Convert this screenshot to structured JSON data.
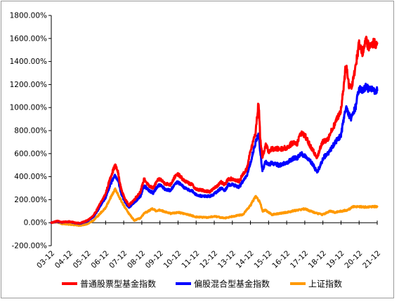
{
  "chart_data": {
    "type": "line",
    "title": "",
    "xlabel": "",
    "ylabel": "",
    "y_tick_labels": [
      "1800.00%",
      "1600.00%",
      "1400.00%",
      "1200.00%",
      "1000.00%",
      "800.00%",
      "600.00%",
      "400.00%",
      "200.00%",
      "0.00%",
      "-200.00%"
    ],
    "y_ticks": [
      1800,
      1600,
      1400,
      1200,
      1000,
      800,
      600,
      400,
      200,
      0,
      -200
    ],
    "ylim": [
      -200,
      1800
    ],
    "x_tick_labels": [
      "03-12",
      "04-12",
      "05-12",
      "06-12",
      "07-12",
      "08-12",
      "09-12",
      "10-12",
      "11-12",
      "12-12",
      "13-12",
      "14-12",
      "15-12",
      "16-12",
      "17-12",
      "18-12",
      "19-12",
      "20-12",
      "21-12"
    ],
    "xlim": [
      2003.92,
      2021.92
    ],
    "grid": false,
    "legend_position": "bottom",
    "series": [
      {
        "name": "普通股票型基金指数",
        "color": "#ff0000",
        "x": [
          2003.92,
          2004.25,
          2004.5,
          2004.92,
          2005.25,
          2005.5,
          2005.92,
          2006.25,
          2006.5,
          2006.92,
          2007.2,
          2007.45,
          2007.6,
          2007.75,
          2007.92,
          2008.2,
          2008.5,
          2008.85,
          2009.05,
          2009.3,
          2009.55,
          2009.75,
          2009.92,
          2010.2,
          2010.5,
          2010.75,
          2010.92,
          2011.3,
          2011.7,
          2011.92,
          2012.3,
          2012.7,
          2012.92,
          2013.3,
          2013.5,
          2013.7,
          2013.92,
          2014.3,
          2014.5,
          2014.7,
          2014.92,
          2015.2,
          2015.37,
          2015.45,
          2015.58,
          2015.75,
          2015.92,
          2016.1,
          2016.5,
          2016.92,
          2017.3,
          2017.5,
          2017.7,
          2017.92,
          2018.3,
          2018.6,
          2018.85,
          2018.92,
          2019.2,
          2019.4,
          2019.7,
          2019.92,
          2020.2,
          2020.35,
          2020.5,
          2020.75,
          2020.92,
          2021.1,
          2021.3,
          2021.5,
          2021.7,
          2021.92
        ],
        "y": [
          0,
          15,
          5,
          10,
          0,
          -5,
          20,
          60,
          130,
          250,
          400,
          500,
          440,
          310,
          230,
          150,
          200,
          270,
          380,
          320,
          300,
          360,
          380,
          340,
          330,
          400,
          420,
          360,
          330,
          290,
          280,
          270,
          300,
          350,
          330,
          380,
          380,
          360,
          420,
          460,
          620,
          780,
          1050,
          760,
          560,
          680,
          620,
          640,
          640,
          650,
          700,
          690,
          780,
          760,
          640,
          570,
          680,
          700,
          730,
          800,
          900,
          980,
          1380,
          1200,
          1180,
          1380,
          1560,
          1480,
          1580,
          1520,
          1560,
          1560
        ]
      },
      {
        "name": "偏股混合型基金指数",
        "color": "#0000ff",
        "x": [
          2003.92,
          2004.25,
          2004.5,
          2004.92,
          2005.25,
          2005.5,
          2005.92,
          2006.25,
          2006.5,
          2006.92,
          2007.2,
          2007.45,
          2007.6,
          2007.75,
          2007.92,
          2008.2,
          2008.5,
          2008.85,
          2009.05,
          2009.3,
          2009.55,
          2009.75,
          2009.92,
          2010.2,
          2010.5,
          2010.75,
          2010.92,
          2011.3,
          2011.7,
          2011.92,
          2012.3,
          2012.7,
          2012.92,
          2013.3,
          2013.5,
          2013.7,
          2013.92,
          2014.3,
          2014.5,
          2014.7,
          2014.92,
          2015.2,
          2015.37,
          2015.45,
          2015.58,
          2015.75,
          2015.92,
          2016.1,
          2016.5,
          2016.92,
          2017.3,
          2017.5,
          2017.7,
          2017.92,
          2018.3,
          2018.6,
          2018.85,
          2018.92,
          2019.2,
          2019.4,
          2019.7,
          2019.92,
          2020.2,
          2020.35,
          2020.5,
          2020.75,
          2020.92,
          2021.1,
          2021.3,
          2021.5,
          2021.7,
          2021.92
        ],
        "y": [
          0,
          10,
          3,
          8,
          -2,
          -8,
          15,
          50,
          110,
          220,
          340,
          410,
          370,
          270,
          200,
          130,
          175,
          230,
          320,
          280,
          260,
          310,
          330,
          290,
          280,
          340,
          350,
          300,
          275,
          240,
          230,
          230,
          250,
          300,
          280,
          330,
          330,
          310,
          360,
          400,
          520,
          700,
          760,
          640,
          450,
          530,
          500,
          520,
          500,
          520,
          560,
          560,
          600,
          580,
          520,
          440,
          520,
          560,
          600,
          650,
          720,
          760,
          1020,
          940,
          900,
          1020,
          1180,
          1140,
          1180,
          1160,
          1150,
          1150
        ]
      },
      {
        "name": "上证指数",
        "color": "#ff9900",
        "x": [
          2003.92,
          2004.25,
          2004.5,
          2004.92,
          2005.25,
          2005.5,
          2005.92,
          2006.25,
          2006.5,
          2006.92,
          2007.2,
          2007.45,
          2007.75,
          2007.92,
          2008.2,
          2008.5,
          2008.85,
          2009.05,
          2009.5,
          2009.75,
          2009.92,
          2010.5,
          2010.92,
          2011.5,
          2011.92,
          2012.5,
          2012.92,
          2013.5,
          2013.92,
          2014.5,
          2014.92,
          2015.2,
          2015.45,
          2015.58,
          2015.75,
          2015.92,
          2016.1,
          2016.5,
          2016.92,
          2017.5,
          2017.92,
          2018.5,
          2018.92,
          2019.3,
          2019.6,
          2019.92,
          2020.3,
          2020.6,
          2020.92,
          2021.3,
          2021.6,
          2021.92
        ],
        "y": [
          0,
          5,
          -10,
          -15,
          -20,
          -25,
          -10,
          20,
          60,
          130,
          220,
          290,
          200,
          150,
          80,
          20,
          40,
          80,
          120,
          100,
          110,
          80,
          90,
          70,
          50,
          45,
          55,
          40,
          55,
          70,
          150,
          230,
          180,
          100,
          110,
          90,
          70,
          80,
          90,
          110,
          120,
          85,
          70,
          100,
          90,
          100,
          110,
          140,
          140,
          135,
          140,
          140
        ]
      }
    ]
  }
}
